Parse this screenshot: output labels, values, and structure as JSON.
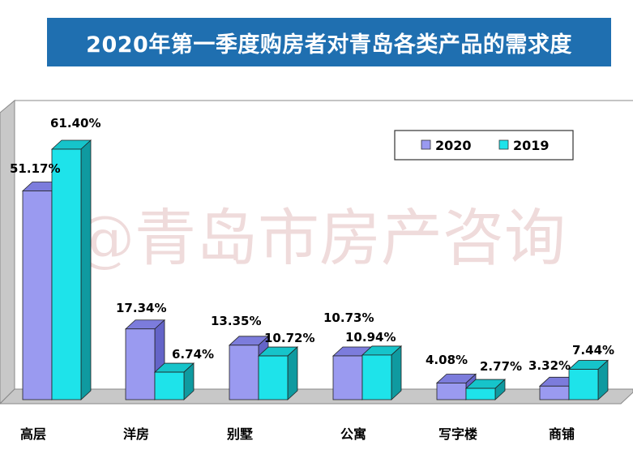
{
  "chart_data": {
    "type": "bar",
    "title": "2020年第一季度购房者对青岛各类产品的需求度",
    "categories": [
      "高层",
      "洋房",
      "别墅",
      "公寓",
      "写字楼",
      "商铺"
    ],
    "series": [
      {
        "name": "2020",
        "values": [
          51.17,
          17.34,
          13.35,
          10.73,
          4.08,
          3.32
        ],
        "labels": [
          "51.17%",
          "17.34%",
          "13.35%",
          "10.73%",
          "4.08%",
          "3.32%"
        ]
      },
      {
        "name": "2019",
        "values": [
          61.4,
          6.74,
          10.72,
          10.94,
          2.77,
          7.44
        ],
        "labels": [
          "61.40%",
          "6.74%",
          "10.72%",
          "10.94%",
          "2.77%",
          "7.44%"
        ]
      }
    ],
    "ylim": [
      0,
      70
    ],
    "grid": false,
    "legend_position": "top-right",
    "watermark": "@青岛市房产咨询"
  },
  "colors": {
    "title_bg": "#1f6fb0",
    "series_2020_front": "#9a9af0",
    "series_2020_side": "#6464c8",
    "series_2020_top": "#7c7cdc",
    "series_2019_front": "#1ee3ea",
    "series_2019_side": "#0f9aa0",
    "series_2019_top": "#16c4ca"
  }
}
